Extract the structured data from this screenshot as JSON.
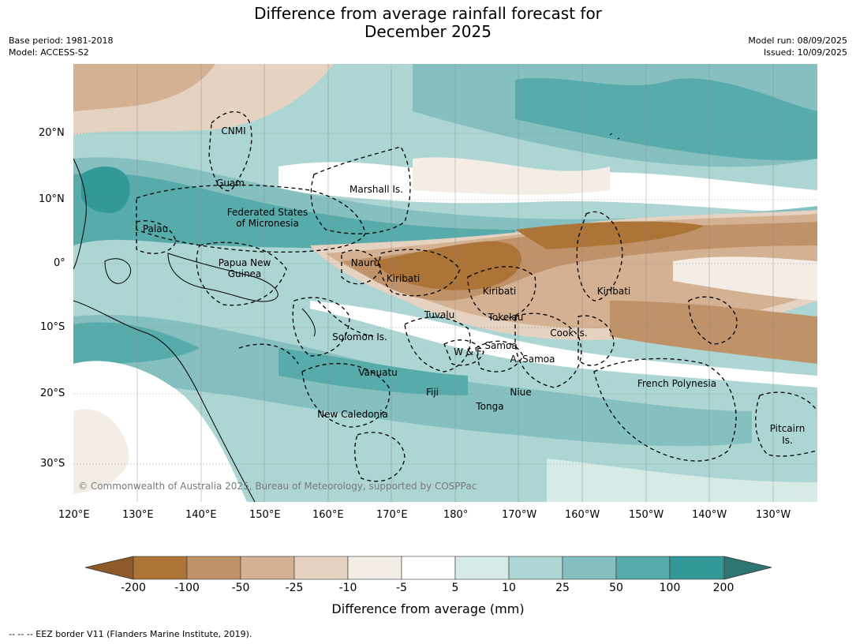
{
  "title_line1": "Difference from average rainfall forecast for",
  "title_line2": "December 2025",
  "meta_left": [
    "Base period: 1981-2018",
    "Model: ACCESS-S2"
  ],
  "meta_right": [
    "Model run: 08/09/2025",
    "Issued: 10/09/2025"
  ],
  "lat_labels": [
    "20°N",
    "10°N",
    "0°",
    "10°S",
    "20°S",
    "30°S"
  ],
  "lon_labels": [
    "120°E",
    "130°E",
    "140°E",
    "150°E",
    "160°E",
    "170°E",
    "180°",
    "170°W",
    "160°W",
    "150°W",
    "140°W",
    "130°W"
  ],
  "region_labels": [
    "CNMI",
    "Guam",
    "Marshall Is.",
    "Federated States",
    "of Micronesia",
    "Palau",
    "Papua New",
    "Guinea",
    "Nauru",
    "Kiribati",
    "Kiribati",
    "Kiribati",
    "Tuvalu",
    "Tokelau",
    "Cook Is.",
    "Solomon Is.",
    "W & F",
    "Samoa",
    "A. Samoa",
    "Vanuatu",
    "Fiji",
    "Niue",
    "Tonga",
    "New Caledonia",
    "French Polynesia",
    "Pitcairn",
    "Is."
  ],
  "copyright": "© Commonwealth of Australia 2025, Bureau of Meteorology, supported by COSPPac",
  "legend": {
    "title": "Difference from average (mm)",
    "ticks": [
      "-200",
      "-100",
      "-50",
      "-25",
      "-10",
      "-5",
      "5",
      "10",
      "25",
      "50",
      "100",
      "200"
    ],
    "colors": [
      "#8f5a2a",
      "#ad7438",
      "#bf926a",
      "#d3b192",
      "#e6d2c0",
      "#f3ede5",
      "#ffffff",
      "#d6eae8",
      "#acd5d3",
      "#85bfbf",
      "#58abab",
      "#329898",
      "#2e7672"
    ]
  },
  "footnote": "--  --  -- EEZ border V11 (Flanders Marine Institute, 2019)."
}
